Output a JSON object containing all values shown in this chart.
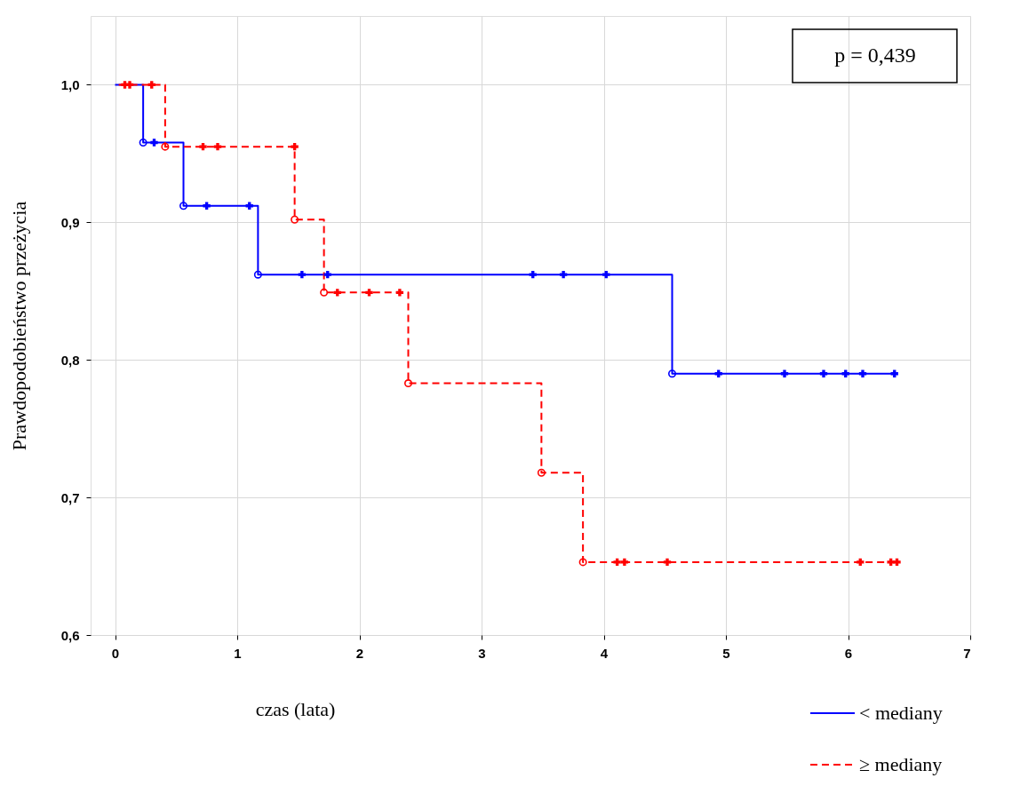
{
  "chart_data": {
    "type": "line",
    "xlabel": "czas (lata)",
    "ylabel": "Prawdopodobieństwo przeżycia",
    "annotations": [
      "p = 0,439"
    ],
    "xlim": [
      -0.2,
      7
    ],
    "xticks": [
      0,
      1,
      2,
      3,
      4,
      5,
      6,
      7
    ],
    "ylim": [
      0.6,
      1.05
    ],
    "yticks": [
      {
        "value": 0.6,
        "label": "0,6"
      },
      {
        "value": 0.7,
        "label": "0,7"
      },
      {
        "value": 0.8,
        "label": "0,8"
      },
      {
        "value": 0.9,
        "label": "0,9"
      },
      {
        "value": 1.0,
        "label": "1,0"
      }
    ],
    "grid": true,
    "legend": "bottom right",
    "series": [
      {
        "name": "< mediany",
        "color": "#0000ff",
        "line_style": "solid",
        "x": [
          0,
          0.23,
          0.23,
          0.56,
          0.56,
          1.17,
          1.17,
          4.56,
          4.56,
          6.38
        ],
        "values": [
          1.0,
          1.0,
          0.958,
          0.958,
          0.912,
          0.912,
          0.862,
          0.862,
          0.79,
          0.79
        ]
      },
      {
        "name": "≥ mediany",
        "color": "#ff0000",
        "line_style": "dashed",
        "x": [
          0.03,
          0.41,
          0.41,
          1.47,
          1.47,
          1.71,
          1.71,
          2.4,
          2.4,
          3.49,
          3.49,
          3.83,
          3.83,
          6.4
        ],
        "values": [
          1.0,
          1.0,
          0.955,
          0.955,
          0.902,
          0.902,
          0.849,
          0.849,
          0.783,
          0.783,
          0.718,
          0.718,
          0.653,
          0.653
        ]
      },
      {
        "type": "scatter",
        "marker": "cross",
        "color": "#0000ff",
        "x": [
          0.32,
          0.75,
          1.1,
          1.53,
          1.74,
          3.42,
          3.67,
          4.02,
          4.94,
          5.48,
          5.8,
          5.98,
          6.12,
          6.38
        ],
        "values": [
          0.958,
          0.912,
          0.912,
          0.862,
          0.862,
          0.862,
          0.862,
          0.862,
          0.79,
          0.79,
          0.79,
          0.79,
          0.79,
          0.79
        ]
      },
      {
        "type": "scatter",
        "marker": "circle",
        "color": "#0000ff",
        "x": [
          0.23,
          0.56,
          1.17,
          4.56
        ],
        "values": [
          0.958,
          0.912,
          0.862,
          0.79
        ]
      },
      {
        "type": "scatter",
        "marker": "cross",
        "color": "#ff0000",
        "x": [
          0.08,
          0.12,
          0.3,
          0.72,
          0.84,
          1.47,
          1.82,
          2.08,
          2.33,
          4.11,
          4.17,
          4.52,
          6.1,
          6.35,
          6.4
        ],
        "values": [
          1.0,
          1.0,
          1.0,
          0.955,
          0.955,
          0.955,
          0.849,
          0.849,
          0.849,
          0.653,
          0.653,
          0.653,
          0.653,
          0.653,
          0.653
        ]
      },
      {
        "type": "scatter",
        "marker": "circle",
        "color": "#ff0000",
        "x": [
          0.41,
          1.47,
          1.71,
          2.4,
          3.49,
          3.83
        ],
        "values": [
          0.955,
          0.902,
          0.849,
          0.783,
          0.718,
          0.653
        ]
      }
    ]
  }
}
